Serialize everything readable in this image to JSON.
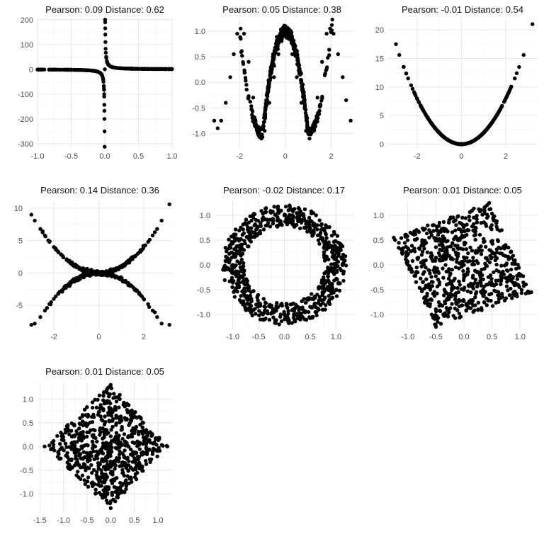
{
  "chart_data": [
    {
      "type": "scatter",
      "title": "Pearson: 0.09   Distance: 0.62",
      "xlabel": "",
      "ylabel": "",
      "xlim": [
        -1.0,
        1.0
      ],
      "ylim": [
        -320,
        205
      ],
      "xticks": [
        -1.0,
        -0.5,
        0.0,
        0.5,
        1.0
      ],
      "xtick_labels": [
        "-1.0",
        "-0.5",
        "0.0",
        "0.5",
        "1.0"
      ],
      "yticks": [
        -300,
        -200,
        -100,
        0,
        100,
        200
      ],
      "ytick_labels": [
        "-300",
        "-200",
        "-100",
        "0",
        "100",
        "200"
      ],
      "grid": true,
      "shape": "reciprocal 1/x",
      "x": [
        -1.0,
        -0.9,
        -0.8,
        -0.7,
        -0.6,
        -0.5,
        -0.4,
        -0.3,
        -0.2,
        -0.15,
        -0.1,
        -0.07,
        -0.05,
        -0.04,
        -0.03,
        -0.02,
        -0.015,
        -0.012,
        -0.01,
        -0.009,
        -0.007,
        -0.006,
        -0.005,
        -0.004,
        -0.0032,
        0.0,
        0.004,
        0.005,
        0.006,
        0.007,
        0.009,
        0.012,
        0.015,
        0.02,
        0.03,
        0.05,
        0.07,
        0.1,
        0.15,
        0.2,
        0.3,
        0.4,
        0.5,
        0.6,
        0.7,
        0.8,
        0.9,
        1.0
      ],
      "y": [
        -1,
        -1.1,
        -1.25,
        -1.4,
        -1.7,
        -2,
        -2.5,
        -3.3,
        -5,
        -6.7,
        -10,
        -14,
        -20,
        -25,
        -33,
        -50,
        -67,
        -83,
        -100,
        -110,
        -143,
        -167,
        -200,
        -250,
        -312,
        0,
        200,
        190,
        165,
        140,
        110,
        83,
        67,
        50,
        33,
        20,
        14,
        10,
        7,
        5,
        3.3,
        2.5,
        2,
        1.7,
        1.4,
        1.25,
        1.1,
        1
      ]
    },
    {
      "type": "scatter",
      "title": "Pearson: 0.05   Distance: 0.38",
      "xlabel": "",
      "ylabel": "",
      "xlim": [
        -3.3,
        3.0
      ],
      "ylim": [
        -1.3,
        1.25
      ],
      "xticks": [
        -2,
        0,
        2
      ],
      "xtick_labels": [
        "-2",
        "0",
        "2"
      ],
      "yticks": [
        -1.0,
        -0.5,
        0.0,
        0.5,
        1.0
      ],
      "ytick_labels": [
        "-1.0",
        "-0.5",
        "0.0",
        "0.5",
        "1.0"
      ],
      "grid": true,
      "shape": "W curve",
      "x": [
        -3.1,
        -2.95,
        -2.8,
        -2.6,
        -2.4,
        -2.25,
        -2.1,
        -1.95,
        -1.8,
        -1.6,
        -1.4,
        -1.2,
        -1.05,
        -0.9,
        -0.7,
        -0.5,
        -0.3,
        -0.15,
        0.0,
        0.15,
        0.3,
        0.5,
        0.7,
        0.9,
        1.05,
        1.2,
        1.4,
        1.6,
        1.8,
        1.95,
        2.1,
        2.3,
        2.5,
        2.65,
        2.85
      ],
      "y": [
        -0.75,
        -0.9,
        -0.75,
        -0.4,
        0.1,
        0.55,
        0.95,
        1.05,
        0.95,
        0.4,
        -0.3,
        -0.9,
        -1.1,
        -0.95,
        -0.4,
        0.1,
        0.55,
        0.85,
        1.1,
        0.85,
        0.55,
        0.1,
        -0.4,
        -0.95,
        -1.1,
        -0.9,
        -0.3,
        0.4,
        0.95,
        1.05,
        0.95,
        0.55,
        0.1,
        -0.35,
        -0.75
      ]
    },
    {
      "type": "scatter",
      "title": "Pearson: -0.01   Distance: 0.54",
      "xlabel": "",
      "ylabel": "",
      "xlim": [
        -3.3,
        3.4
      ],
      "ylim": [
        -0.8,
        22
      ],
      "xticks": [
        -2,
        0,
        2
      ],
      "xtick_labels": [
        "-2",
        "0",
        "2"
      ],
      "yticks": [
        0,
        5,
        10,
        15,
        20
      ],
      "ytick_labels": [
        "0",
        "5",
        "10",
        "15",
        "20"
      ],
      "grid": true,
      "shape": "parabola y = 2x^2",
      "x": [
        -2.95,
        -2.8,
        -2.6,
        -2.4,
        -2.2,
        -2.0,
        -1.8,
        -1.6,
        -1.4,
        -1.2,
        -1.0,
        -0.8,
        -0.6,
        -0.4,
        -0.2,
        0.0,
        0.2,
        0.4,
        0.6,
        0.8,
        1.0,
        1.2,
        1.4,
        1.6,
        1.8,
        2.0,
        2.2,
        2.4,
        2.6,
        2.8,
        3.2
      ],
      "y": [
        17.5,
        15.6,
        13.5,
        11.5,
        9.7,
        8.0,
        6.5,
        5.1,
        3.9,
        2.9,
        2.0,
        1.3,
        0.7,
        0.3,
        0.1,
        0.0,
        0.1,
        0.3,
        0.7,
        1.3,
        2.0,
        2.9,
        3.9,
        5.1,
        6.5,
        8.0,
        9.7,
        11.5,
        13.5,
        15.6,
        21.0
      ]
    },
    {
      "type": "scatter",
      "title": "Pearson: 0.14   Distance: 0.36",
      "xlabel": "",
      "ylabel": "",
      "xlim": [
        -3.2,
        3.3
      ],
      "ylim": [
        -8.7,
        11.2
      ],
      "xticks": [
        -2,
        0,
        2
      ],
      "xtick_labels": [
        "-2",
        "0",
        "2"
      ],
      "yticks": [
        -5,
        0,
        5,
        10
      ],
      "ytick_labels": [
        "-5",
        "0",
        "5",
        "10"
      ],
      "grid": true,
      "shape": "crossing parabolas y = x^2 and y = -x^2",
      "x": [
        -3.0,
        -2.85,
        -2.6,
        -2.4,
        -2.2,
        -2.0,
        -1.8,
        -1.6,
        -1.4,
        -1.2,
        -1.0,
        -0.8,
        -0.6,
        -0.4,
        -0.2,
        0.0,
        0.2,
        0.4,
        0.6,
        0.8,
        1.0,
        1.2,
        1.4,
        1.6,
        1.8,
        2.0,
        2.2,
        2.4,
        2.6,
        2.8,
        3.15
      ],
      "y_upper": [
        9.0,
        8.1,
        6.8,
        5.8,
        4.8,
        4.0,
        3.2,
        2.6,
        2.0,
        1.4,
        1.0,
        0.6,
        0.4,
        0.2,
        0.0,
        0.0,
        0.0,
        0.2,
        0.4,
        0.6,
        1.0,
        1.4,
        2.0,
        2.6,
        3.2,
        4.0,
        4.8,
        5.8,
        6.8,
        8.1,
        10.6
      ],
      "y_lower": [
        -8.0,
        -7.8,
        -6.8,
        -5.8,
        -4.8,
        -4.0,
        -3.2,
        -2.6,
        -2.0,
        -1.4,
        -1.0,
        -0.6,
        -0.4,
        -0.2,
        0.0,
        0.2,
        0.0,
        -0.2,
        -0.4,
        -0.6,
        -1.0,
        -1.4,
        -2.0,
        -2.6,
        -3.2,
        -4.0,
        -4.8,
        -5.8,
        -6.8,
        -7.8,
        -8.0
      ]
    },
    {
      "type": "scatter",
      "title": "Pearson: -0.02   Distance: 0.17",
      "xlabel": "",
      "ylabel": "",
      "xlim": [
        -1.35,
        1.35
      ],
      "ylim": [
        -1.3,
        1.3
      ],
      "xticks": [
        -1.0,
        -0.5,
        0.0,
        0.5,
        1.0
      ],
      "xtick_labels": [
        "-1.0",
        "-0.5",
        "0.0",
        "0.5",
        "1.0"
      ],
      "yticks": [
        -1.0,
        -0.5,
        0.0,
        0.5,
        1.0
      ],
      "ytick_labels": [
        "-1.0",
        "-0.5",
        "0.0",
        "0.5",
        "1.0"
      ],
      "grid": true,
      "shape": "noisy ring of radius about 1",
      "x": [
        1.0,
        0.92,
        0.71,
        0.38,
        0.0,
        -0.38,
        -0.71,
        -0.92,
        -1.0,
        -0.92,
        -0.71,
        -0.38,
        0.0,
        0.38,
        0.71,
        0.92,
        1.15,
        -1.15,
        0.1,
        -0.1,
        0.8,
        -0.8,
        0.6,
        -0.6
      ],
      "y": [
        0.0,
        0.38,
        0.71,
        0.92,
        1.0,
        0.92,
        0.71,
        0.38,
        0.0,
        -0.38,
        -0.71,
        -0.92,
        -1.0,
        -0.92,
        -0.71,
        -0.38,
        0.1,
        -0.1,
        1.2,
        -1.2,
        0.8,
        -0.8,
        -0.95,
        0.95
      ]
    },
    {
      "type": "scatter",
      "title": "Pearson: 0.01   Distance: 0.05",
      "xlabel": "",
      "ylabel": "",
      "xlim": [
        -1.35,
        1.3
      ],
      "ylim": [
        -1.3,
        1.3
      ],
      "xticks": [
        -1.0,
        -0.5,
        0.0,
        0.5,
        1.0
      ],
      "xtick_labels": [
        "-1.0",
        "-0.5",
        "0.0",
        "0.5",
        "1.0"
      ],
      "yticks": [
        -1.0,
        -0.5,
        0.0,
        0.5,
        1.0
      ],
      "ytick_labels": [
        "-1.0",
        "-0.5",
        "0.0",
        "0.5",
        "1.0"
      ],
      "grid": true,
      "shape": "filled rotated square",
      "corners": {
        "x": [
          -1.25,
          0.45,
          1.2,
          -0.5
        ],
        "y": [
          0.55,
          1.25,
          -0.55,
          -1.25
        ]
      },
      "x": [
        -1.25,
        0.45,
        1.2,
        -0.5,
        0.0,
        -0.4,
        0.4,
        0.6,
        -0.6,
        0.1
      ],
      "y": [
        0.55,
        1.25,
        -0.55,
        -1.25,
        0.0,
        0.4,
        -0.4,
        0.5,
        -0.5,
        0.9
      ]
    },
    {
      "type": "scatter",
      "title": "Pearson: 0.01   Distance: 0.05",
      "xlabel": "",
      "ylabel": "",
      "xlim": [
        -1.55,
        1.3
      ],
      "ylim": [
        -1.4,
        1.35
      ],
      "xticks": [
        -1.5,
        -1.0,
        -0.5,
        0.0,
        0.5,
        1.0
      ],
      "xtick_labels": [
        "-1.5",
        "-1.0",
        "-0.5",
        "0.0",
        "0.5",
        "1.0"
      ],
      "yticks": [
        -1.0,
        -0.5,
        0.0,
        0.5,
        1.0
      ],
      "ytick_labels": [
        "-1.0",
        "-0.5",
        "0.0",
        "0.5",
        "1.0"
      ],
      "grid": true,
      "shape": "filled diamond",
      "corners": {
        "x": [
          -1.4,
          0.0,
          1.2,
          0.0
        ],
        "y": [
          0.0,
          1.3,
          0.0,
          -1.3
        ]
      },
      "x": [
        -1.4,
        0.0,
        1.2,
        0.0,
        0.0,
        -0.5,
        0.5,
        -0.3,
        0.3,
        0.0
      ],
      "y": [
        0.0,
        1.3,
        0.0,
        -1.3,
        0.0,
        0.3,
        -0.3,
        -0.6,
        0.6,
        0.8
      ]
    }
  ]
}
